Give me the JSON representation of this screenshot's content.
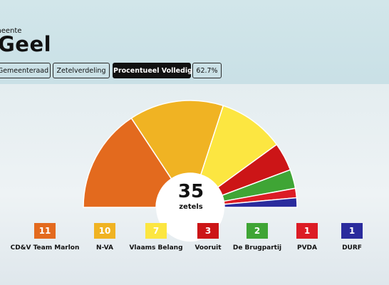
{
  "header": {
    "subtitle": "meente",
    "title": "Geel"
  },
  "tabs": [
    {
      "label": "Gemeenteraad",
      "active": false
    },
    {
      "label": "Zetelverdeling",
      "active": false
    },
    {
      "label": "Procentueel Volledig",
      "active": true
    },
    {
      "label": "62.7%",
      "active": false
    }
  ],
  "seats": {
    "total": "35",
    "caption": "zetels"
  },
  "parties": [
    {
      "name": "CD&V Team Marlon",
      "seats": "11",
      "color": "#e36a1e"
    },
    {
      "name": "N-VA",
      "seats": "10",
      "color": "#f0b323"
    },
    {
      "name": "Vlaams Belang",
      "seats": "7",
      "color": "#fce641"
    },
    {
      "name": "Vooruit",
      "seats": "3",
      "color": "#cc1517"
    },
    {
      "name": "De Brugpartij",
      "seats": "2",
      "color": "#3fa535"
    },
    {
      "name": "PVDA",
      "seats": "1",
      "color": "#dc1c25"
    },
    {
      "name": "DURF",
      "seats": "1",
      "color": "#2a2b9d"
    }
  ],
  "chart_data": {
    "type": "pie",
    "categories": [
      "CD&V Team Marlon",
      "N-VA",
      "Vlaams Belang",
      "Vooruit",
      "De Brugpartij",
      "PVDA",
      "DURF"
    ],
    "values": [
      11,
      10,
      7,
      3,
      2,
      1,
      1
    ],
    "total": 35,
    "shape": "semicircle",
    "center_label": "35 zetels",
    "colors": [
      "#e36a1e",
      "#f0b323",
      "#fce641",
      "#cc1517",
      "#3fa535",
      "#dc1c25",
      "#2a2b9d"
    ]
  }
}
